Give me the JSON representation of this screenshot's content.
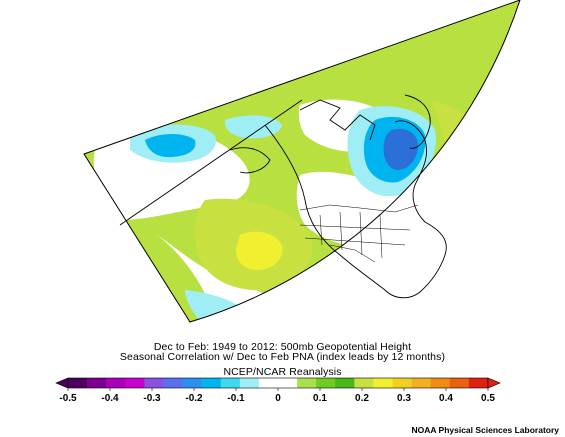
{
  "title_line1": "Dec to Feb: 1949 to 2012: 500mb Geopotential Height",
  "title_line2": "Seasonal Correlation w/ Dec to Feb PNA (index leads by 12 months)",
  "dataset": "NCEP/NCAR Reanalysis",
  "credit": "NOAA Physical Sciences Laboratory",
  "colorbar": {
    "ticks": [
      "-0.5",
      "-0.4",
      "-0.3",
      "-0.2",
      "-0.1",
      "0",
      "0.1",
      "0.2",
      "0.3",
      "0.4",
      "0.5"
    ],
    "colors": [
      "#4b0060",
      "#7a0090",
      "#a800b8",
      "#c800d0",
      "#8a50e0",
      "#5a70f0",
      "#2a90f0",
      "#00b4f0",
      "#3ed8f0",
      "#a0eef5",
      "#ffffff",
      "#ffffff",
      "#a8e050",
      "#70cc20",
      "#48b818",
      "#c8e040",
      "#f0f030",
      "#f0d020",
      "#f0b020",
      "#f08c10",
      "#e86010",
      "#e02010"
    ]
  },
  "map": {
    "projection": "polar stereographic sector",
    "field": "correlation",
    "fill_colors": {
      "background": "#b8e040",
      "zero": "#ffffff",
      "neg_weak": "#a0eef5",
      "neg_mid": "#00b4f0",
      "neg_strong": "#2a70d8",
      "pos_weak": "#c8e040",
      "pos_mid": "#f0f030",
      "pos_strong": "#f0b020",
      "pos_max": "#e86010"
    }
  }
}
